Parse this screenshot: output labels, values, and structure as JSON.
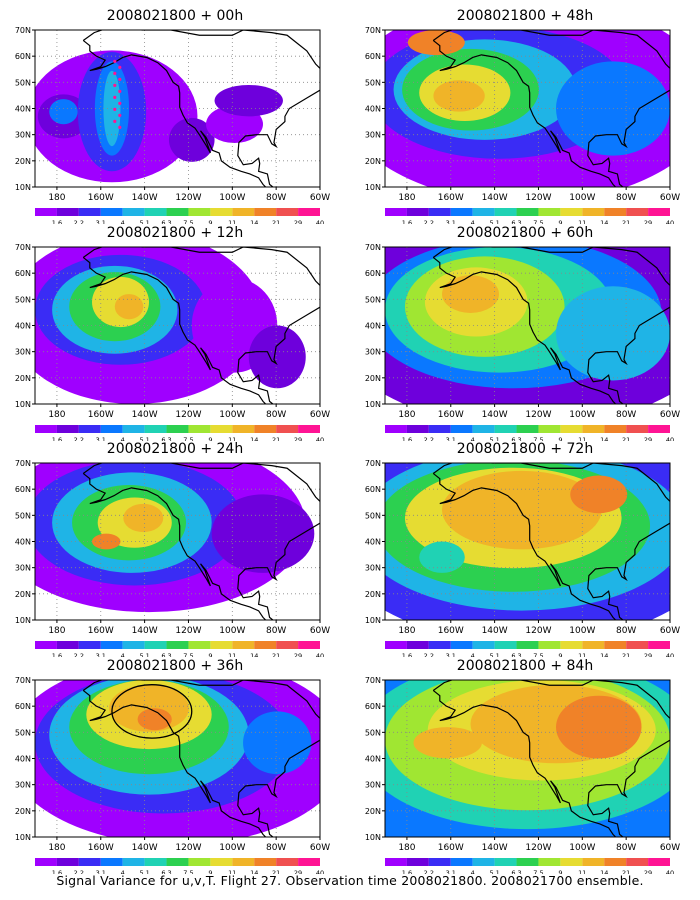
{
  "caption": "Signal Variance for u,v,T. Flight 27. Observation time 2008021800. 2008021700 ensemble.",
  "colors": [
    "#9f00ff",
    "#6e00dc",
    "#3a2cf5",
    "#0a78ff",
    "#1fb4e6",
    "#20d2b4",
    "#2cd050",
    "#a0e632",
    "#e6dc32",
    "#f0b428",
    "#f08228",
    "#f05050",
    "#ff1494"
  ],
  "chart_data": [
    {
      "type": "heatmap",
      "title": "2008021800 + 00h",
      "x_ticks": [
        "180",
        "160W",
        "140W",
        "120W",
        "100W",
        "80W",
        "60W"
      ],
      "y_ticks": [
        "10N",
        "20N",
        "30N",
        "40N",
        "50N",
        "60N",
        "70N"
      ],
      "colorbar_labels": [
        "1.6",
        "2.2",
        "3.1",
        "4",
        "5.1",
        "6.3",
        "7.5",
        "9",
        "11",
        "14",
        "21",
        "29",
        "40"
      ],
      "xlim": [
        -190,
        -60
      ],
      "ylim": [
        10,
        70
      ],
      "grid": true
    },
    {
      "type": "heatmap",
      "title": "2008021800 + 12h",
      "x_ticks": [
        "180",
        "160W",
        "140W",
        "120W",
        "100W",
        "80W",
        "60W"
      ],
      "y_ticks": [
        "10N",
        "20N",
        "30N",
        "40N",
        "50N",
        "60N",
        "70N"
      ],
      "colorbar_labels": [
        "1.6",
        "2.2",
        "3.1",
        "4",
        "5.1",
        "6.3",
        "7.5",
        "9",
        "11",
        "14",
        "21",
        "29",
        "40"
      ],
      "xlim": [
        -190,
        -60
      ],
      "ylim": [
        10,
        70
      ],
      "grid": true
    },
    {
      "type": "heatmap",
      "title": "2008021800 + 24h",
      "x_ticks": [
        "180",
        "160W",
        "140W",
        "120W",
        "100W",
        "80W",
        "60W"
      ],
      "y_ticks": [
        "10N",
        "20N",
        "30N",
        "40N",
        "50N",
        "60N",
        "70N"
      ],
      "colorbar_labels": [
        "1.6",
        "2.2",
        "3.1",
        "4",
        "5.1",
        "6.3",
        "7.5",
        "9",
        "11",
        "14",
        "21",
        "29",
        "40"
      ],
      "xlim": [
        -190,
        -60
      ],
      "ylim": [
        10,
        70
      ],
      "grid": true
    },
    {
      "type": "heatmap",
      "title": "2008021800 + 36h",
      "x_ticks": [
        "180",
        "160W",
        "140W",
        "120W",
        "100W",
        "80W",
        "60W"
      ],
      "y_ticks": [
        "10N",
        "20N",
        "30N",
        "40N",
        "50N",
        "60N",
        "70N"
      ],
      "colorbar_labels": [
        "1.6",
        "2.2",
        "3.1",
        "4",
        "5.1",
        "6.3",
        "7.5",
        "9",
        "11",
        "14",
        "21",
        "29",
        "40"
      ],
      "xlim": [
        -190,
        -60
      ],
      "ylim": [
        10,
        70
      ],
      "grid": true
    },
    {
      "type": "heatmap",
      "title": "2008021800 + 48h",
      "x_ticks": [
        "180",
        "160W",
        "140W",
        "120W",
        "100W",
        "80W",
        "60W"
      ],
      "y_ticks": [
        "10N",
        "20N",
        "30N",
        "40N",
        "50N",
        "60N",
        "70N"
      ],
      "colorbar_labels": [
        "1.6",
        "2.2",
        "3.1",
        "4",
        "5.1",
        "6.3",
        "7.5",
        "9",
        "11",
        "14",
        "21",
        "29",
        "40"
      ],
      "xlim": [
        -190,
        -60
      ],
      "ylim": [
        10,
        70
      ],
      "grid": true
    },
    {
      "type": "heatmap",
      "title": "2008021800 + 60h",
      "x_ticks": [
        "180",
        "160W",
        "140W",
        "120W",
        "100W",
        "80W",
        "60W"
      ],
      "y_ticks": [
        "10N",
        "20N",
        "30N",
        "40N",
        "50N",
        "60N",
        "70N"
      ],
      "colorbar_labels": [
        "1.6",
        "2.2",
        "3.1",
        "4",
        "5.1",
        "6.3",
        "7.5",
        "9",
        "11",
        "14",
        "21",
        "29",
        "40"
      ],
      "xlim": [
        -190,
        -60
      ],
      "ylim": [
        10,
        70
      ],
      "grid": true
    },
    {
      "type": "heatmap",
      "title": "2008021800 + 72h",
      "x_ticks": [
        "180",
        "160W",
        "140W",
        "120W",
        "100W",
        "80W",
        "60W"
      ],
      "y_ticks": [
        "10N",
        "20N",
        "30N",
        "40N",
        "50N",
        "60N",
        "70N"
      ],
      "colorbar_labels": [
        "1.6",
        "2.2",
        "3.1",
        "4",
        "5.1",
        "6.3",
        "7.5",
        "9",
        "11",
        "14",
        "21",
        "29",
        "40"
      ],
      "xlim": [
        -190,
        -60
      ],
      "ylim": [
        10,
        70
      ],
      "grid": true
    },
    {
      "type": "heatmap",
      "title": "2008021800 + 84h",
      "x_ticks": [
        "180",
        "160W",
        "140W",
        "120W",
        "100W",
        "80W",
        "60W"
      ],
      "y_ticks": [
        "10N",
        "20N",
        "30N",
        "40N",
        "50N",
        "60N",
        "70N"
      ],
      "colorbar_labels": [
        "1.6",
        "2.2",
        "3.1",
        "4",
        "5.1",
        "6.3",
        "7.5",
        "9",
        "11",
        "14",
        "21",
        "29",
        "40"
      ],
      "xlim": [
        -190,
        -60
      ],
      "ylim": [
        10,
        70
      ],
      "grid": true
    }
  ]
}
